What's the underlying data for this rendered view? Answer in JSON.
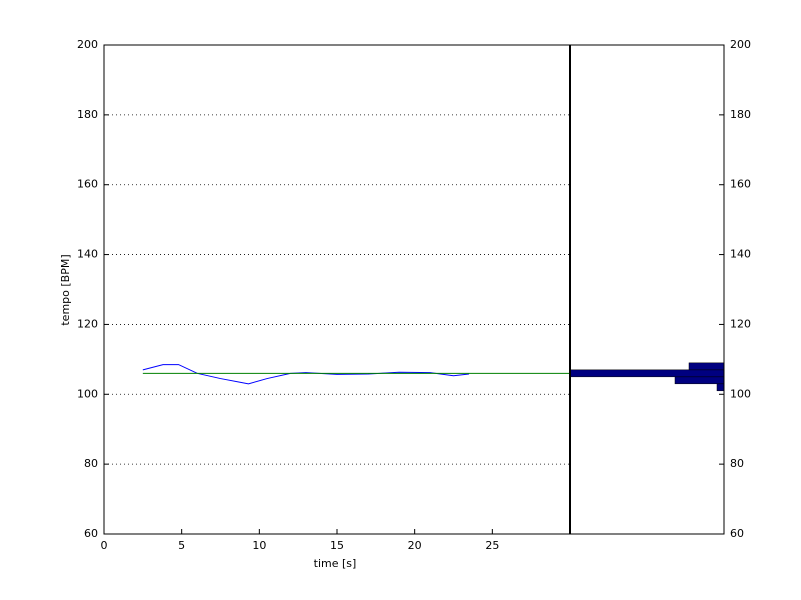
{
  "chart_data": [
    {
      "type": "line",
      "x_label": "time [s]",
      "y_label": "tempo [BPM]",
      "xlim": [
        0,
        30
      ],
      "xticks": [
        0,
        5,
        10,
        15,
        20,
        25
      ],
      "ylim": [
        60,
        200
      ],
      "yticks": [
        60,
        80,
        100,
        120,
        140,
        160,
        180,
        200
      ],
      "grid": true,
      "series": [
        {
          "color": "#0000ff",
          "x": [
            2.5,
            3.8,
            4.8,
            6,
            7.5,
            9.3,
            10.5,
            12,
            13,
            15,
            17,
            19,
            21,
            22.5,
            23.5
          ],
          "values": [
            107,
            108.5,
            108.5,
            106,
            104.5,
            103,
            104.5,
            106,
            106.2,
            105.7,
            105.8,
            106.3,
            106.2,
            105.3,
            105.8
          ]
        },
        {
          "color": "#008000",
          "x": [
            2.5,
            30
          ],
          "values": [
            106,
            106
          ]
        }
      ]
    },
    {
      "type": "histogram",
      "orientation": "horizontal",
      "reversed": true,
      "ylim": [
        60,
        200
      ],
      "yticks": [
        60,
        80,
        100,
        120,
        140,
        160,
        180,
        200
      ],
      "xlim": [
        0,
        22
      ],
      "bins": [
        101,
        103,
        105,
        107,
        109
      ],
      "values": [
        1,
        7,
        22,
        5
      ],
      "color": "#000080"
    }
  ]
}
